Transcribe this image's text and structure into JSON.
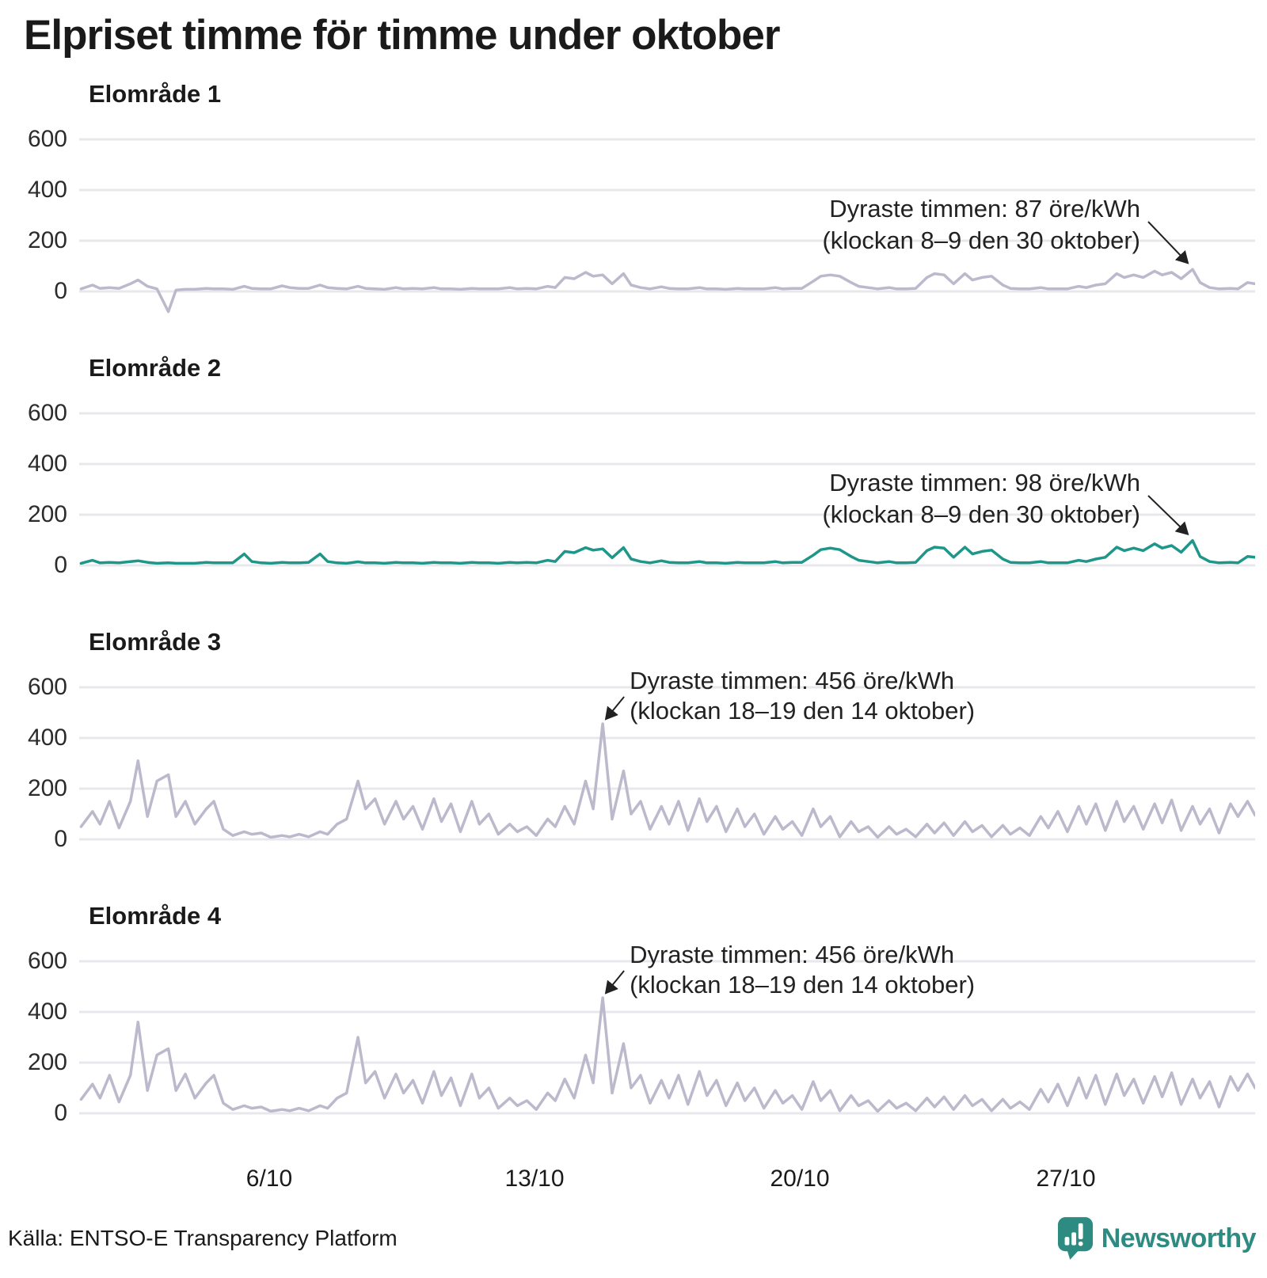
{
  "title": "Elpriset timme för timme under oktober",
  "source": "Källa: ENTSO-E Transparency Platform",
  "brand": {
    "name": "Newsworthy",
    "logo": "bar-chart-speech-bubble",
    "color": "#2E8B82"
  },
  "colors": {
    "line_default": "#BBB9CB",
    "line_highlight": "#1E968A",
    "grid": "#E8E8EC",
    "text": "#1A1A1A",
    "annotation": "#222222"
  },
  "axis": {
    "y_ticks": [
      0,
      200,
      400,
      600
    ],
    "y_ticks_desc": [
      "600",
      "400",
      "200",
      "0"
    ],
    "y_unit": "öre/kWh",
    "x_ticks": [
      {
        "label": "6/10",
        "day": 6
      },
      {
        "label": "13/10",
        "day": 13
      },
      {
        "label": "20/10",
        "day": 20
      },
      {
        "label": "27/10",
        "day": 27
      }
    ],
    "x_range_days": [
      1,
      32
    ],
    "grid": "horizontal-only"
  },
  "chart_data": [
    {
      "type": "line",
      "title": "Elområde 1",
      "unit": "öre/kWh",
      "color": "#BBB9CB",
      "sample_hours": [
        1,
        8,
        13,
        19
      ],
      "daily_values": [
        [
          10,
          25,
          12,
          15
        ],
        [
          12,
          30,
          45,
          20
        ],
        [
          10,
          -80,
          5,
          8
        ],
        [
          8,
          12,
          10,
          10
        ],
        [
          8,
          20,
          12,
          10
        ],
        [
          10,
          22,
          15,
          12
        ],
        [
          12,
          25,
          15,
          12
        ],
        [
          10,
          20,
          12,
          10
        ],
        [
          8,
          15,
          10,
          12
        ],
        [
          10,
          15,
          10,
          10
        ],
        [
          8,
          12,
          10,
          10
        ],
        [
          10,
          15,
          10,
          12
        ],
        [
          10,
          20,
          15,
          55
        ],
        [
          50,
          75,
          60,
          65
        ],
        [
          30,
          70,
          25,
          15
        ],
        [
          10,
          18,
          12,
          10
        ],
        [
          10,
          15,
          10,
          10
        ],
        [
          8,
          12,
          10,
          10
        ],
        [
          10,
          15,
          10,
          12
        ],
        [
          12,
          40,
          60,
          65
        ],
        [
          60,
          35,
          20,
          15
        ],
        [
          10,
          15,
          10,
          10
        ],
        [
          12,
          55,
          70,
          65
        ],
        [
          30,
          70,
          45,
          55
        ],
        [
          60,
          25,
          12,
          10
        ],
        [
          10,
          15,
          10,
          10
        ],
        [
          10,
          20,
          15,
          25
        ],
        [
          30,
          70,
          55,
          65
        ],
        [
          55,
          80,
          65,
          75
        ],
        [
          50,
          87,
          35,
          15
        ],
        [
          10,
          12,
          10,
          35
        ]
      ],
      "end_value": 30,
      "max_point": {
        "day": 30.35,
        "value": 87,
        "label_line1": "Dyraste timmen: 87 öre/kWh",
        "label_line2": "(klockan 8–9 den 30 oktober)"
      }
    },
    {
      "type": "line",
      "title": "Elområde 2",
      "unit": "öre/kWh",
      "color": "#1E968A",
      "sample_hours": [
        1,
        8,
        13,
        19
      ],
      "daily_values": [
        [
          8,
          20,
          10,
          12
        ],
        [
          10,
          15,
          18,
          12
        ],
        [
          8,
          10,
          8,
          8
        ],
        [
          8,
          12,
          10,
          10
        ],
        [
          10,
          45,
          15,
          10
        ],
        [
          8,
          12,
          10,
          10
        ],
        [
          12,
          45,
          15,
          10
        ],
        [
          8,
          14,
          10,
          10
        ],
        [
          8,
          12,
          10,
          10
        ],
        [
          8,
          12,
          10,
          10
        ],
        [
          8,
          12,
          10,
          10
        ],
        [
          8,
          12,
          10,
          12
        ],
        [
          10,
          20,
          15,
          55
        ],
        [
          50,
          70,
          60,
          65
        ],
        [
          30,
          70,
          25,
          15
        ],
        [
          10,
          18,
          12,
          10
        ],
        [
          10,
          15,
          10,
          10
        ],
        [
          8,
          12,
          10,
          10
        ],
        [
          10,
          15,
          10,
          12
        ],
        [
          12,
          40,
          62,
          68
        ],
        [
          62,
          35,
          20,
          15
        ],
        [
          10,
          15,
          10,
          10
        ],
        [
          12,
          58,
          72,
          68
        ],
        [
          32,
          72,
          45,
          55
        ],
        [
          60,
          25,
          12,
          10
        ],
        [
          10,
          15,
          10,
          10
        ],
        [
          10,
          20,
          15,
          25
        ],
        [
          32,
          72,
          58,
          68
        ],
        [
          58,
          85,
          68,
          78
        ],
        [
          52,
          98,
          35,
          15
        ],
        [
          10,
          12,
          10,
          35
        ]
      ],
      "end_value": 32,
      "max_point": {
        "day": 30.35,
        "value": 98,
        "label_line1": "Dyraste timmen: 98 öre/kWh",
        "label_line2": "(klockan 8–9 den 30 oktober)"
      }
    },
    {
      "type": "line",
      "title": "Elområde 3",
      "unit": "öre/kWh",
      "color": "#BBB9CB",
      "sample_hours": [
        1,
        8,
        13,
        19
      ],
      "daily_values": [
        [
          50,
          110,
          60,
          150
        ],
        [
          45,
          150,
          310,
          90
        ],
        [
          230,
          255,
          90,
          150
        ],
        [
          60,
          120,
          150,
          40
        ],
        [
          15,
          30,
          20,
          25
        ],
        [
          8,
          15,
          10,
          20
        ],
        [
          10,
          30,
          20,
          60
        ],
        [
          80,
          230,
          120,
          160
        ],
        [
          60,
          150,
          80,
          130
        ],
        [
          40,
          160,
          70,
          140
        ],
        [
          30,
          150,
          60,
          100
        ],
        [
          20,
          60,
          30,
          50
        ],
        [
          15,
          80,
          50,
          130
        ],
        [
          60,
          230,
          120,
          456
        ],
        [
          80,
          270,
          100,
          150
        ],
        [
          40,
          130,
          60,
          150
        ],
        [
          35,
          160,
          70,
          130
        ],
        [
          30,
          120,
          50,
          100
        ],
        [
          20,
          90,
          40,
          70
        ],
        [
          15,
          120,
          50,
          90
        ],
        [
          10,
          70,
          30,
          50
        ],
        [
          8,
          50,
          20,
          40
        ],
        [
          10,
          60,
          25,
          65
        ],
        [
          15,
          70,
          30,
          55
        ],
        [
          10,
          55,
          20,
          45
        ],
        [
          15,
          90,
          45,
          110
        ],
        [
          30,
          130,
          60,
          140
        ],
        [
          35,
          150,
          70,
          130
        ],
        [
          40,
          140,
          65,
          155
        ],
        [
          35,
          130,
          60,
          120
        ],
        [
          25,
          140,
          90,
          150
        ]
      ],
      "end_value": 95,
      "max_point": {
        "day": 14.8,
        "value": 456,
        "label_line1": "Dyraste timmen: 456 öre/kWh",
        "label_line2": "(klockan 18–19 den 14 oktober)"
      }
    },
    {
      "type": "line",
      "title": "Elområde 4",
      "unit": "öre/kWh",
      "color": "#BBB9CB",
      "sample_hours": [
        1,
        8,
        13,
        19
      ],
      "daily_values": [
        [
          55,
          115,
          60,
          150
        ],
        [
          45,
          150,
          360,
          90
        ],
        [
          230,
          255,
          90,
          155
        ],
        [
          60,
          120,
          150,
          40
        ],
        [
          15,
          30,
          20,
          25
        ],
        [
          8,
          15,
          10,
          20
        ],
        [
          10,
          30,
          20,
          60
        ],
        [
          80,
          300,
          120,
          165
        ],
        [
          60,
          155,
          80,
          130
        ],
        [
          40,
          165,
          70,
          140
        ],
        [
          30,
          155,
          60,
          100
        ],
        [
          20,
          60,
          30,
          50
        ],
        [
          15,
          80,
          50,
          135
        ],
        [
          60,
          230,
          120,
          456
        ],
        [
          80,
          275,
          100,
          150
        ],
        [
          40,
          130,
          60,
          150
        ],
        [
          35,
          165,
          70,
          130
        ],
        [
          30,
          120,
          50,
          100
        ],
        [
          20,
          90,
          40,
          70
        ],
        [
          15,
          125,
          50,
          90
        ],
        [
          10,
          70,
          30,
          50
        ],
        [
          8,
          50,
          20,
          40
        ],
        [
          10,
          60,
          25,
          65
        ],
        [
          15,
          70,
          30,
          55
        ],
        [
          10,
          55,
          20,
          45
        ],
        [
          15,
          95,
          45,
          115
        ],
        [
          30,
          140,
          60,
          150
        ],
        [
          35,
          155,
          70,
          135
        ],
        [
          40,
          145,
          65,
          160
        ],
        [
          35,
          135,
          60,
          125
        ],
        [
          25,
          145,
          90,
          155
        ]
      ],
      "end_value": 100,
      "max_point": {
        "day": 14.8,
        "value": 456,
        "label_line1": "Dyraste timmen: 456 öre/kWh",
        "label_line2": "(klockan 18–19 den 14 oktober)"
      }
    }
  ]
}
